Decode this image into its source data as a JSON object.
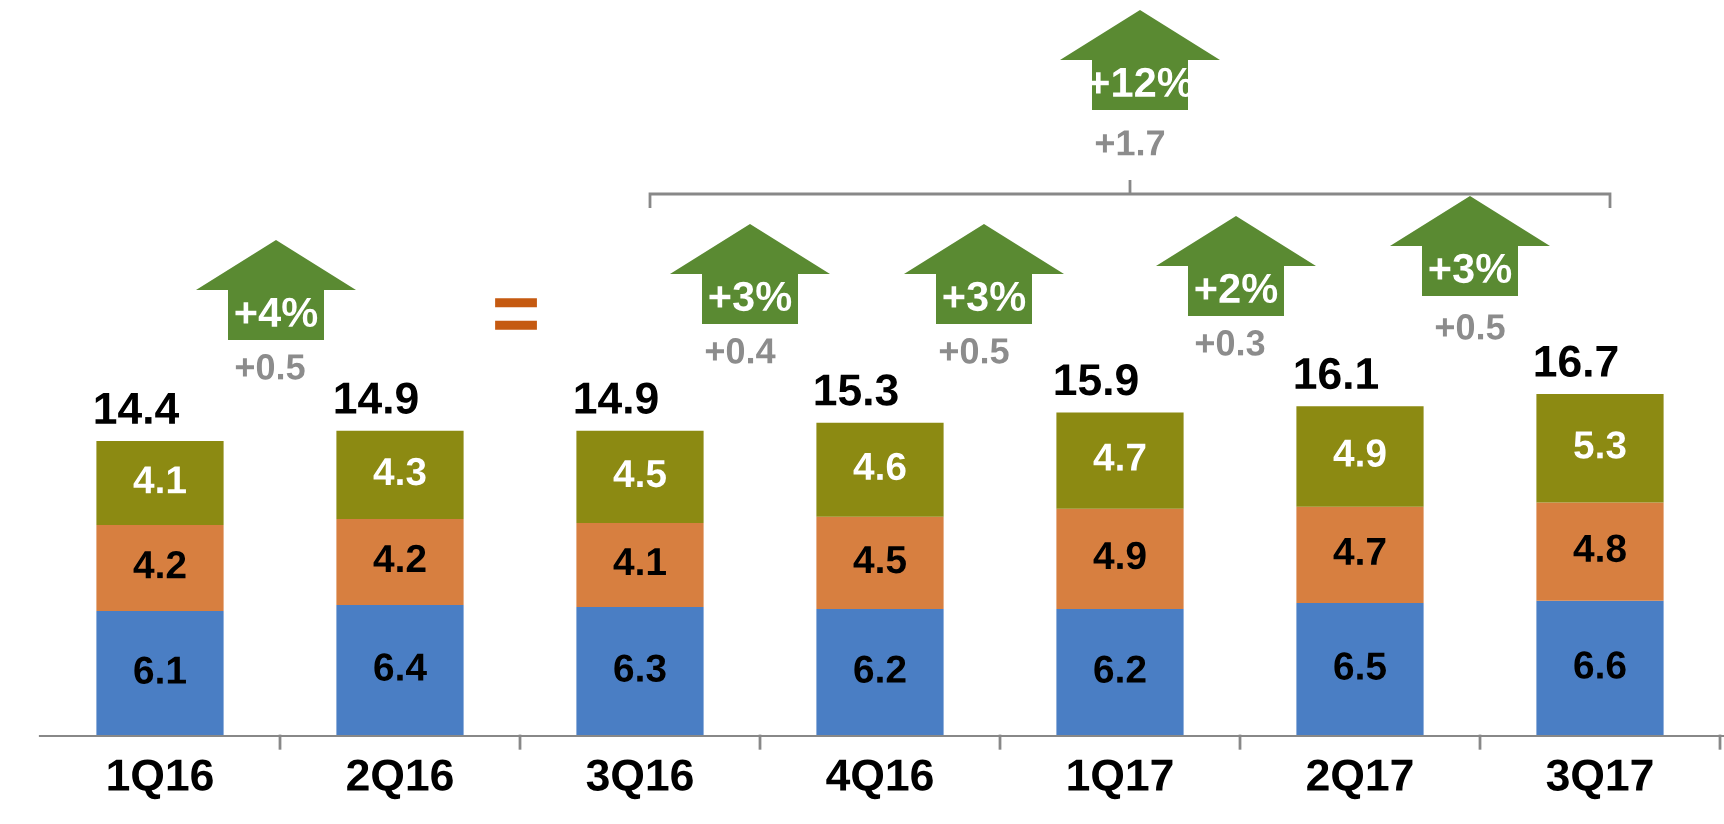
{
  "chart_data": {
    "type": "bar",
    "stacked": true,
    "categories": [
      "1Q16",
      "2Q16",
      "3Q16",
      "4Q16",
      "1Q17",
      "2Q17",
      "3Q17"
    ],
    "series": [
      {
        "color": "#4a7ec4",
        "values": [
          6.1,
          6.4,
          6.3,
          6.2,
          6.2,
          6.5,
          6.6
        ]
      },
      {
        "color": "#d77f40",
        "values": [
          4.2,
          4.2,
          4.1,
          4.5,
          4.9,
          4.7,
          4.8
        ]
      },
      {
        "color": "#8c8a12",
        "values": [
          4.1,
          4.3,
          4.5,
          4.6,
          4.7,
          4.9,
          5.3
        ]
      }
    ],
    "data_labels": true,
    "totals": [
      "14.4",
      "14.9",
      "14.9",
      "15.3",
      "15.9",
      "16.1",
      "16.7"
    ],
    "tick_labels": "x",
    "annotations": [
      "+4%",
      "+0.5",
      "=",
      "+3%",
      "+0.4",
      "+3%",
      "+0.5",
      "+2%",
      "+0.3",
      "+3%",
      "+0.5",
      "+12%",
      "+1.7"
    ]
  }
}
